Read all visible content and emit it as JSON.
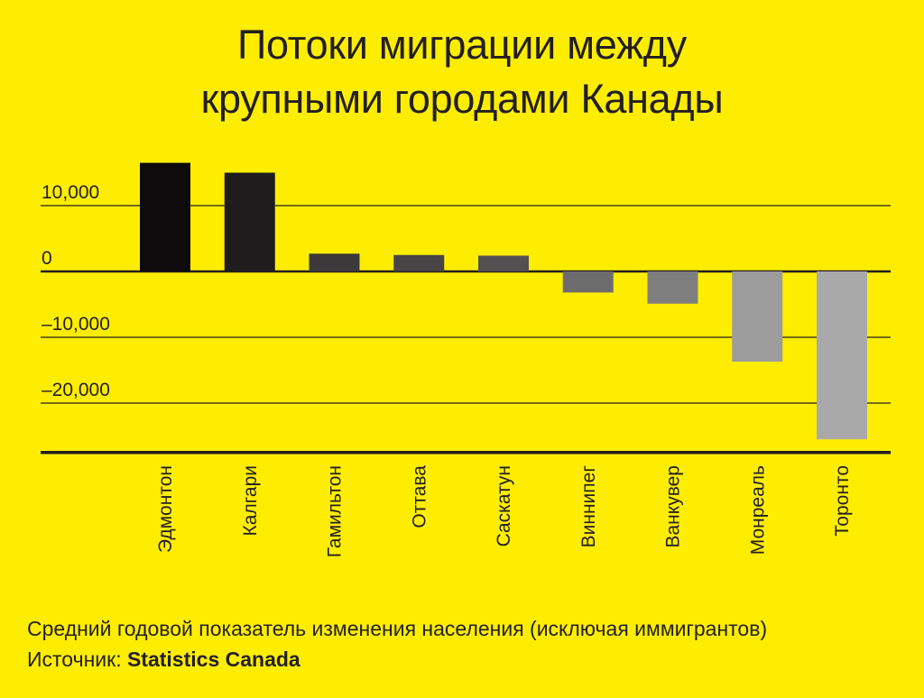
{
  "header": {
    "title_line1": "Потоки миграции между",
    "title_line2": "крупными городами Канады"
  },
  "footer": {
    "subtitle": "Средний годовой показатель изменения населения (исключая иммигрантов)",
    "source_label": "Источник:",
    "source_name": "Statistics Canada"
  },
  "chart_data": {
    "type": "bar",
    "categories": [
      "Эдмонтон",
      "Калгари",
      "Гамильтон",
      "Оттава",
      "Саскатун",
      "Виннипег",
      "Ванкувер",
      "Монреаль",
      "Торонто"
    ],
    "values": [
      16500,
      15000,
      2700,
      2500,
      2400,
      -3200,
      -4900,
      -13700,
      -25500
    ],
    "yticks": [
      10000,
      0,
      -10000,
      -20000
    ],
    "ytick_labels": [
      "10,000",
      "0",
      "–10,000",
      "–20,000"
    ],
    "ylim": [
      -27500,
      16500
    ],
    "grid": true,
    "colors": [
      "#0d0b0c",
      "#1e1c1d",
      "#3b393a",
      "#474546",
      "#525051",
      "#6d6c6c",
      "#7f7e7e",
      "#9d9c9c",
      "#a9a9a9"
    ],
    "title": "Потоки миграции между крупными городами Канады",
    "xlabel": "",
    "ylabel": ""
  }
}
